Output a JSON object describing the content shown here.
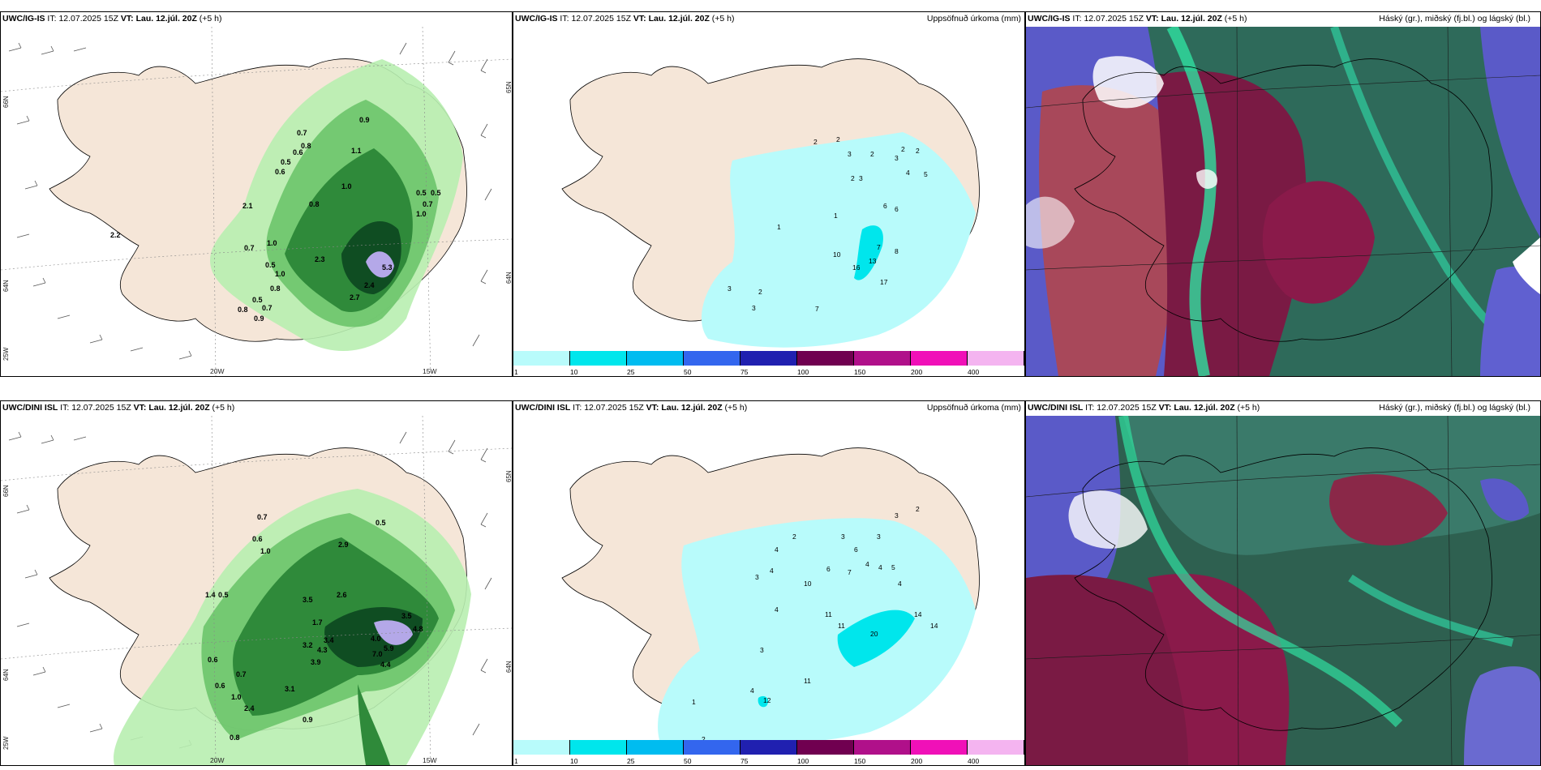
{
  "panels": {
    "tl": {
      "model": "UWC/IG-IS",
      "it_label": "IT:",
      "it_value": "12.07.2025 15Z",
      "vt_label": "VT:",
      "vt_value": "Lau. 12.júl. 20Z",
      "lead": "(+5 h)"
    },
    "tm": {
      "model": "UWC/IG-IS",
      "it_label": "IT:",
      "it_value": "12.07.2025 15Z",
      "vt_label": "VT:",
      "vt_value": "Lau. 12.júl. 20Z",
      "lead": "(+5 h)",
      "right_title": "Uppsöfnuð úrkoma (mm)"
    },
    "tr": {
      "model": "UWC/IG-IS",
      "it_label": "IT:",
      "it_value": "12.07.2025 15Z",
      "vt_label": "VT:",
      "vt_value": "Lau. 12.júl. 20Z",
      "lead": "(+5 h)",
      "right_title": "Háský (gr.), miðský (fj.bl.) og lágský (bl.)"
    },
    "bl": {
      "model": "UWC/DINI ISL",
      "it_label": "IT:",
      "it_value": "12.07.2025 15Z",
      "vt_label": "VT:",
      "vt_value": "Lau. 12.júl. 20Z",
      "lead": "(+5 h)"
    },
    "bm": {
      "model": "UWC/DINI ISL",
      "it_label": "IT:",
      "it_value": "12.07.2025 15Z",
      "vt_label": "VT:",
      "vt_value": "Lau. 12.júl. 20Z",
      "lead": "(+5 h)",
      "right_title": "Uppsöfnuð úrkoma (mm)"
    },
    "br": {
      "model": "UWC/DINI ISL",
      "it_label": "IT:",
      "it_value": "12.07.2025 15Z",
      "vt_label": "VT:",
      "vt_value": "Lau. 12.júl. 20Z",
      "lead": "(+5 h)",
      "right_title": "Háský (gr.), miðský (fj.bl.) og lágský (bl.)"
    }
  },
  "grid_labels": {
    "lat_66": "66N",
    "lat_64": "64N",
    "lat_65": "65N",
    "lon_25": "25W",
    "lon_20": "20W",
    "lon_15": "15W"
  },
  "colorbar": {
    "ticks": [
      "1",
      "10",
      "25",
      "50",
      "75",
      "100",
      "150",
      "200",
      "400"
    ],
    "colors": [
      "#b8fbfb",
      "#00e6ec",
      "#00bcf0",
      "#3366ee",
      "#2020b0",
      "#700050",
      "#b0108a",
      "#f010b8",
      "#f4b4f0"
    ]
  },
  "precip_labels_top": [
    "0.9",
    "0.6",
    "0.7",
    "0.8",
    "0.5",
    "0.6",
    "1.0",
    "0.8",
    "1.1",
    "2.1",
    "1.0",
    "0.7",
    "0.5",
    "1.0",
    "0.8",
    "2.3",
    "5.3",
    "2.4",
    "2.7",
    "0.5",
    "0.7",
    "0.8",
    "0.9",
    "0.5",
    "0.5",
    "0.7",
    "1.0",
    "2.2"
  ],
  "precip_labels_bottom": [
    "0.5",
    "0.7",
    "0.6",
    "1.0",
    "1.4",
    "0.5",
    "0.6",
    "2.9",
    "3.5",
    "2.6",
    "1.7",
    "3.2",
    "3.4",
    "4.3",
    "3.9",
    "4.0",
    "5.9",
    "3.5",
    "4.4",
    "4.8",
    "7.0",
    "0.9",
    "3.1",
    "2.4",
    "0.8",
    "0.6",
    "0.7",
    "1.0"
  ],
  "accum_labels_top": [
    "2",
    "2",
    "3",
    "2",
    "4",
    "5",
    "2",
    "3",
    "3",
    "2",
    "2",
    "1",
    "1",
    "6",
    "6",
    "7",
    "10",
    "16",
    "17",
    "13",
    "8",
    "3",
    "2",
    "3",
    "7"
  ],
  "accum_labels_bottom": [
    "3",
    "2",
    "2",
    "3",
    "6",
    "3",
    "4",
    "3",
    "4",
    "4",
    "4",
    "5",
    "7",
    "6",
    "4",
    "10",
    "11",
    "11",
    "14",
    "14",
    "20",
    "4",
    "3",
    "4",
    "11",
    "1",
    "2",
    "12"
  ]
}
